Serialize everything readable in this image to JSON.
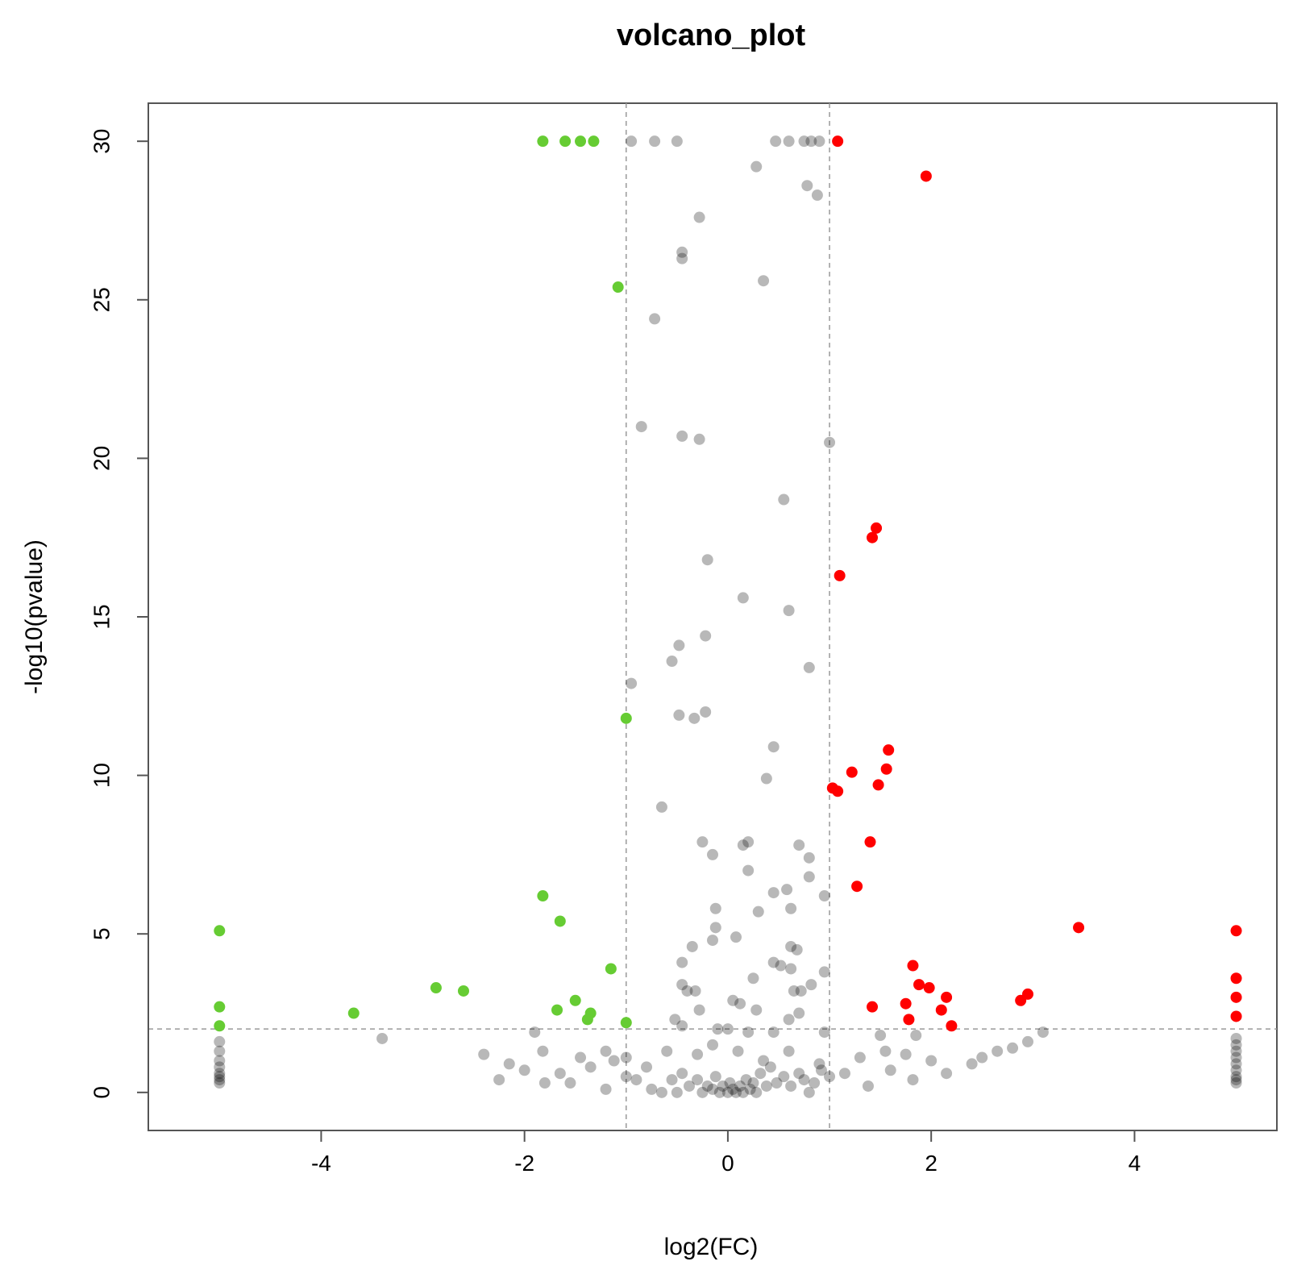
{
  "chart_data": {
    "type": "scatter",
    "title": "volcano_plot",
    "xlabel": "log2(FC)",
    "ylabel": "-log10(pvalue)",
    "xlim": [
      -5.7,
      5.4
    ],
    "ylim": [
      -1.2,
      31.2
    ],
    "x_ticks": [
      -4,
      -2,
      0,
      2,
      4
    ],
    "x_tick_labels": [
      "-4",
      "-2",
      "0",
      "2",
      "4"
    ],
    "y_ticks": [
      0,
      5,
      10,
      15,
      20,
      25,
      30
    ],
    "y_tick_labels": [
      "0",
      "5",
      "10",
      "15",
      "20",
      "25",
      "30"
    ],
    "grid": false,
    "thresholds": {
      "log2fc": [
        -1,
        1
      ],
      "neg_log10_p": 2
    },
    "colors": {
      "up": "#ff0000",
      "down": "#66cc33",
      "ns": "#000000",
      "threshold_line": "#999999"
    },
    "series": [
      {
        "color": "#ff0000",
        "points": [
          [
            1.08,
            30
          ],
          [
            1.95,
            28.9
          ],
          [
            1.1,
            16.3
          ],
          [
            1.42,
            17.5
          ],
          [
            1.46,
            17.8
          ],
          [
            1.58,
            10.8
          ],
          [
            1.56,
            10.2
          ],
          [
            1.48,
            9.7
          ],
          [
            1.22,
            10.1
          ],
          [
            1.03,
            9.6
          ],
          [
            1.08,
            9.5
          ],
          [
            1.4,
            7.9
          ],
          [
            1.27,
            6.5
          ],
          [
            3.45,
            5.2
          ],
          [
            5.0,
            5.1
          ],
          [
            5.0,
            3.6
          ],
          [
            5.0,
            3.0
          ],
          [
            5.0,
            2.4
          ],
          [
            1.82,
            4.0
          ],
          [
            1.88,
            3.4
          ],
          [
            1.98,
            3.3
          ],
          [
            2.15,
            3.0
          ],
          [
            2.95,
            3.1
          ],
          [
            2.88,
            2.9
          ],
          [
            2.1,
            2.6
          ],
          [
            1.42,
            2.7
          ],
          [
            1.75,
            2.8
          ],
          [
            1.78,
            2.3
          ],
          [
            2.2,
            2.1
          ]
        ]
      },
      {
        "color": "#66cc33",
        "points": [
          [
            -1.82,
            30
          ],
          [
            -1.6,
            30
          ],
          [
            -1.45,
            30
          ],
          [
            -1.32,
            30
          ],
          [
            -1.08,
            25.4
          ],
          [
            -1.0,
            11.8
          ],
          [
            -1.82,
            6.2
          ],
          [
            -1.65,
            5.4
          ],
          [
            -5.0,
            5.1
          ],
          [
            -1.15,
            3.9
          ],
          [
            -2.87,
            3.3
          ],
          [
            -2.6,
            3.2
          ],
          [
            -1.5,
            2.9
          ],
          [
            -1.35,
            2.5
          ],
          [
            -1.68,
            2.6
          ],
          [
            -1.38,
            2.3
          ],
          [
            -3.68,
            2.5
          ],
          [
            -5.0,
            2.7
          ],
          [
            -5.0,
            2.1
          ],
          [
            -1.0,
            2.2
          ]
        ]
      },
      {
        "color": "#000000",
        "points": [
          [
            -0.95,
            30
          ],
          [
            -0.72,
            30
          ],
          [
            -0.5,
            30
          ],
          [
            0.47,
            30
          ],
          [
            0.6,
            30
          ],
          [
            0.75,
            30
          ],
          [
            0.82,
            30
          ],
          [
            0.9,
            30
          ],
          [
            0.28,
            29.2
          ],
          [
            0.78,
            28.6
          ],
          [
            0.88,
            28.3
          ],
          [
            -0.28,
            27.6
          ],
          [
            -0.45,
            26.5
          ],
          [
            -0.45,
            26.3
          ],
          [
            0.35,
            25.6
          ],
          [
            -0.72,
            24.4
          ],
          [
            -0.85,
            21.0
          ],
          [
            -0.45,
            20.7
          ],
          [
            -0.28,
            20.6
          ],
          [
            1.0,
            20.5
          ],
          [
            0.55,
            18.7
          ],
          [
            -0.2,
            16.8
          ],
          [
            0.15,
            15.6
          ],
          [
            0.6,
            15.2
          ],
          [
            -0.22,
            14.4
          ],
          [
            -0.48,
            14.1
          ],
          [
            -0.55,
            13.6
          ],
          [
            0.8,
            13.4
          ],
          [
            -0.95,
            12.9
          ],
          [
            -0.22,
            12.0
          ],
          [
            -0.48,
            11.9
          ],
          [
            -0.33,
            11.8
          ],
          [
            0.45,
            10.9
          ],
          [
            0.38,
            9.9
          ],
          [
            -0.65,
            9.0
          ],
          [
            -0.25,
            7.9
          ],
          [
            -0.15,
            7.5
          ],
          [
            0.15,
            7.8
          ],
          [
            0.2,
            7.9
          ],
          [
            0.7,
            7.8
          ],
          [
            0.8,
            7.4
          ],
          [
            0.2,
            7.0
          ],
          [
            0.8,
            6.8
          ],
          [
            0.95,
            6.2
          ],
          [
            0.45,
            6.3
          ],
          [
            0.58,
            6.4
          ],
          [
            -0.12,
            5.8
          ],
          [
            0.62,
            5.8
          ],
          [
            0.3,
            5.7
          ],
          [
            -0.12,
            5.2
          ],
          [
            -0.15,
            4.8
          ],
          [
            0.08,
            4.9
          ],
          [
            -0.35,
            4.6
          ],
          [
            0.62,
            4.6
          ],
          [
            0.68,
            4.5
          ],
          [
            -0.45,
            4.1
          ],
          [
            0.45,
            4.1
          ],
          [
            0.52,
            4.0
          ],
          [
            0.62,
            3.9
          ],
          [
            0.95,
            3.8
          ],
          [
            -0.45,
            3.4
          ],
          [
            -0.4,
            3.2
          ],
          [
            -0.32,
            3.2
          ],
          [
            0.25,
            3.6
          ],
          [
            0.65,
            3.2
          ],
          [
            0.72,
            3.2
          ],
          [
            0.82,
            3.4
          ],
          [
            0.05,
            2.9
          ],
          [
            0.12,
            2.8
          ],
          [
            0.28,
            2.6
          ],
          [
            -0.28,
            2.6
          ],
          [
            -0.52,
            2.3
          ],
          [
            0.6,
            2.3
          ],
          [
            0.7,
            2.5
          ],
          [
            -0.45,
            2.1
          ],
          [
            -0.1,
            2.0
          ],
          [
            0.0,
            2.0
          ],
          [
            0.2,
            1.9
          ],
          [
            0.45,
            1.9
          ],
          [
            0.95,
            1.9
          ],
          [
            1.5,
            1.8
          ],
          [
            1.85,
            1.8
          ],
          [
            2.95,
            1.6
          ],
          [
            3.1,
            1.9
          ],
          [
            -3.4,
            1.7
          ],
          [
            -1.9,
            1.9
          ],
          [
            -1.2,
            1.3
          ],
          [
            -1.0,
            1.1
          ],
          [
            -0.8,
            0.8
          ],
          [
            -0.6,
            1.3
          ],
          [
            -0.3,
            1.2
          ],
          [
            -0.15,
            1.5
          ],
          [
            0.1,
            1.3
          ],
          [
            0.35,
            1.0
          ],
          [
            0.6,
            1.3
          ],
          [
            0.9,
            0.9
          ],
          [
            1.3,
            1.1
          ],
          [
            1.55,
            1.3
          ],
          [
            1.75,
            1.2
          ],
          [
            2.0,
            1.0
          ],
          [
            2.5,
            1.1
          ],
          [
            2.65,
            1.3
          ],
          [
            2.8,
            1.4
          ],
          [
            -2.4,
            1.2
          ],
          [
            -2.25,
            0.4
          ],
          [
            -2.15,
            0.9
          ],
          [
            -2.0,
            0.7
          ],
          [
            -1.8,
            0.3
          ],
          [
            -1.82,
            1.3
          ],
          [
            -1.65,
            0.6
          ],
          [
            -1.55,
            0.3
          ],
          [
            -1.45,
            1.1
          ],
          [
            -1.35,
            0.8
          ],
          [
            -1.2,
            0.1
          ],
          [
            -1.12,
            1.0
          ],
          [
            -1.0,
            0.5
          ],
          [
            -0.9,
            0.4
          ],
          [
            -0.75,
            0.1
          ],
          [
            -0.65,
            0.0
          ],
          [
            -0.55,
            0.4
          ],
          [
            -0.5,
            0.0
          ],
          [
            -0.45,
            0.6
          ],
          [
            -0.38,
            0.2
          ],
          [
            -0.3,
            0.4
          ],
          [
            -0.25,
            0.0
          ],
          [
            -0.2,
            0.2
          ],
          [
            -0.15,
            0.1
          ],
          [
            -0.12,
            0.5
          ],
          [
            -0.08,
            0.0
          ],
          [
            -0.05,
            0.2
          ],
          [
            0.0,
            0.0
          ],
          [
            0.02,
            0.3
          ],
          [
            0.05,
            0.1
          ],
          [
            0.08,
            0.0
          ],
          [
            0.12,
            0.2
          ],
          [
            0.15,
            0.0
          ],
          [
            0.18,
            0.4
          ],
          [
            0.22,
            0.1
          ],
          [
            0.25,
            0.3
          ],
          [
            0.28,
            0.0
          ],
          [
            0.32,
            0.6
          ],
          [
            0.38,
            0.2
          ],
          [
            0.42,
            0.8
          ],
          [
            0.48,
            0.3
          ],
          [
            0.55,
            0.5
          ],
          [
            0.62,
            0.2
          ],
          [
            0.7,
            0.6
          ],
          [
            0.75,
            0.4
          ],
          [
            0.8,
            0.0
          ],
          [
            0.85,
            0.3
          ],
          [
            0.92,
            0.7
          ],
          [
            1.0,
            0.5
          ],
          [
            1.15,
            0.6
          ],
          [
            1.38,
            0.2
          ],
          [
            1.6,
            0.7
          ],
          [
            1.82,
            0.4
          ],
          [
            2.15,
            0.6
          ],
          [
            2.4,
            0.9
          ],
          [
            -5.0,
            1.6
          ],
          [
            -5.0,
            1.3
          ],
          [
            -5.0,
            1.0
          ],
          [
            -5.0,
            0.8
          ],
          [
            -5.0,
            0.6
          ],
          [
            -5.0,
            0.5
          ],
          [
            -5.0,
            0.4
          ],
          [
            -5.0,
            0.3
          ],
          [
            5.0,
            1.7
          ],
          [
            5.0,
            1.5
          ],
          [
            5.0,
            1.3
          ],
          [
            5.0,
            1.1
          ],
          [
            5.0,
            0.9
          ],
          [
            5.0,
            0.7
          ],
          [
            5.0,
            0.5
          ],
          [
            5.0,
            0.4
          ],
          [
            5.0,
            0.3
          ]
        ]
      }
    ]
  }
}
